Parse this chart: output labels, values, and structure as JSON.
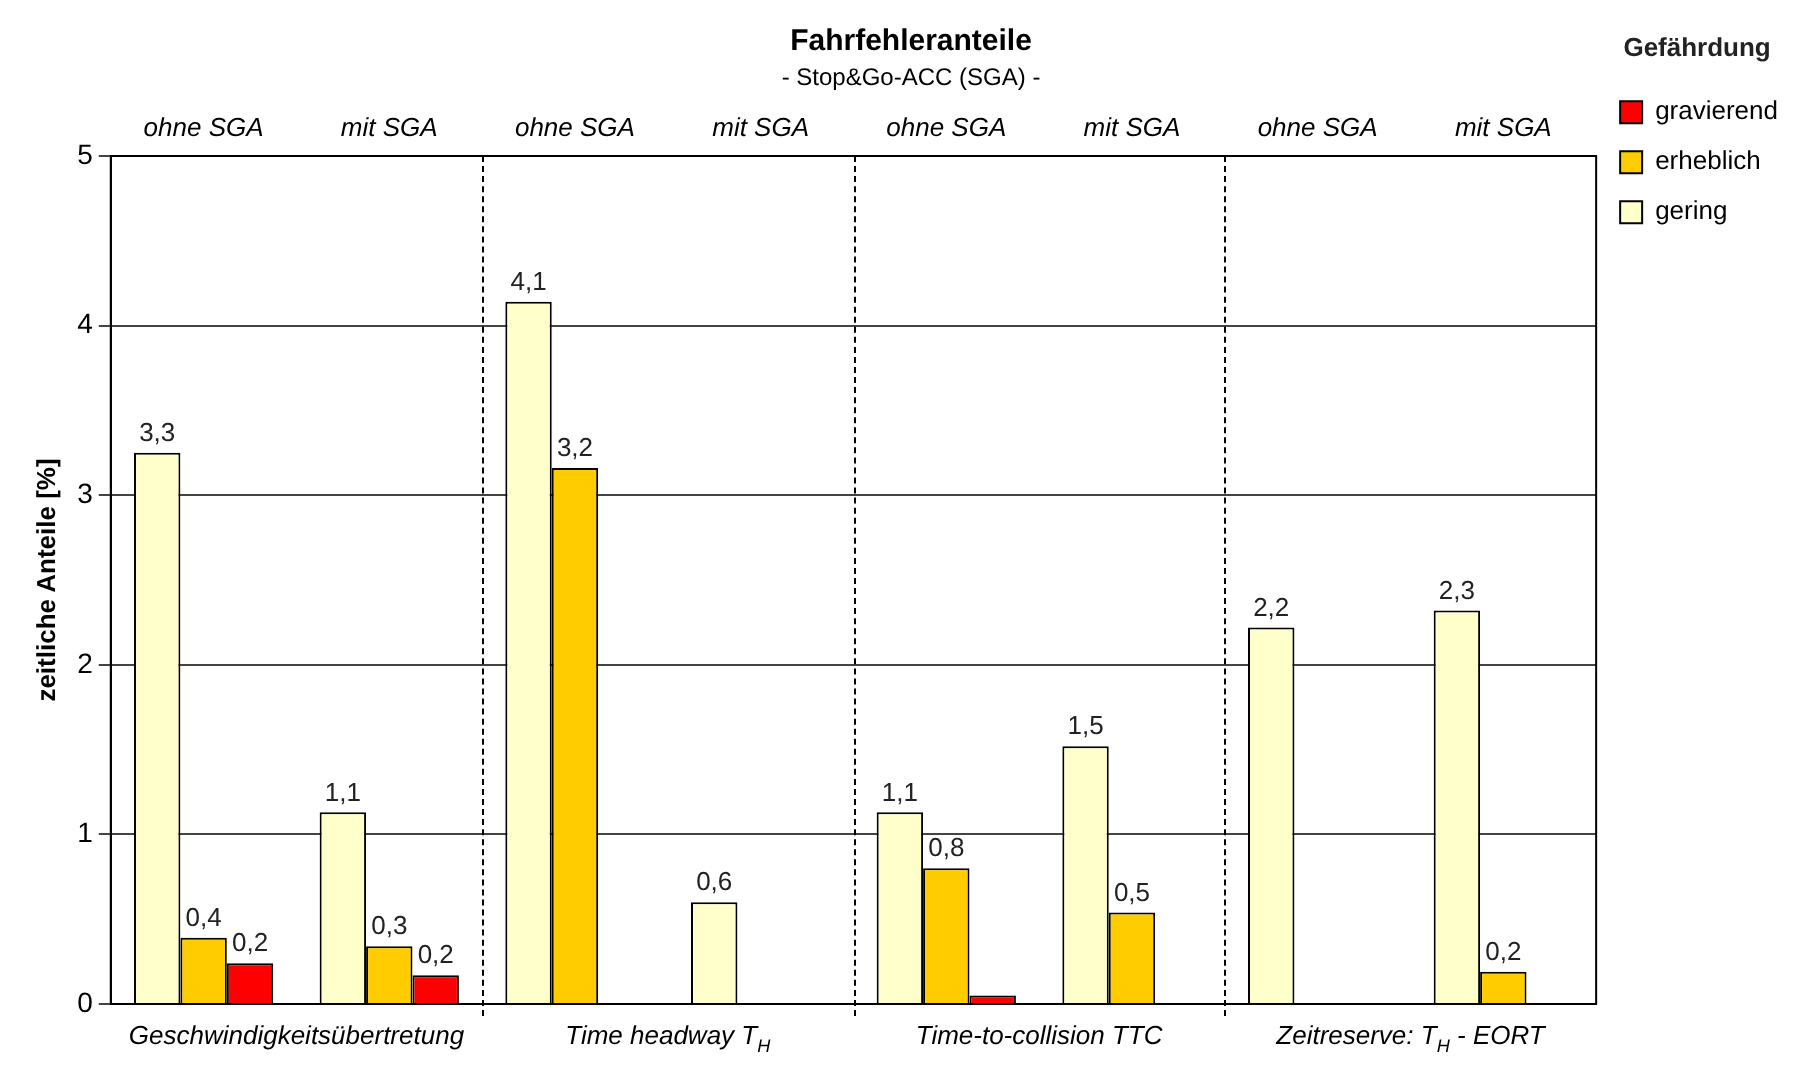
{
  "chart_data": {
    "type": "bar",
    "title": "Fahrfehleranteile",
    "subtitle": "- Stop&Go-ACC (SGA) -",
    "ylabel": "zeitliche Anteile [%]",
    "legend_title": "Gefährdung",
    "categories": [
      "ohne SGA",
      "mit SGA",
      "ohne SGA",
      "mit SGA",
      "ohne SGA",
      "mit SGA",
      "ohne SGA",
      "mit SGA"
    ],
    "series": [
      {
        "name": "gering",
        "color": "#ffffcc",
        "values": [
          3.25,
          1.13,
          4.14,
          0.6,
          1.13,
          1.52,
          2.22,
          2.32
        ],
        "value_labels": [
          "3,3",
          "1,1",
          "4,1",
          "0,6",
          "1,1",
          "1,5",
          "2,2",
          "2,3"
        ]
      },
      {
        "name": "erheblich",
        "color": "#ffcc00",
        "values": [
          0.39,
          0.34,
          3.16,
          null,
          0.8,
          0.54,
          null,
          0.19
        ],
        "value_labels": [
          "0,4",
          "0,3",
          "3,2",
          null,
          "0,8",
          "0,5",
          null,
          "0,2"
        ]
      },
      {
        "name": "gravierend",
        "color": "#ff0000",
        "values": [
          0.24,
          0.17,
          null,
          null,
          0.05,
          null,
          null,
          null
        ],
        "value_labels": [
          "0,2",
          "0,2",
          null,
          null,
          null,
          null,
          null,
          null
        ]
      }
    ],
    "annotations": [
      "Geschwindigkeitsübertretung",
      "Time headway T$_{H}$",
      "Time-to-collision TTC",
      "Zeitreserve: T$_{H}$ - EORT"
    ],
    "ylim": [
      0,
      5
    ],
    "yticks": [
      0,
      1,
      2,
      3,
      4,
      5
    ],
    "grid": "y",
    "legend": "top right"
  }
}
